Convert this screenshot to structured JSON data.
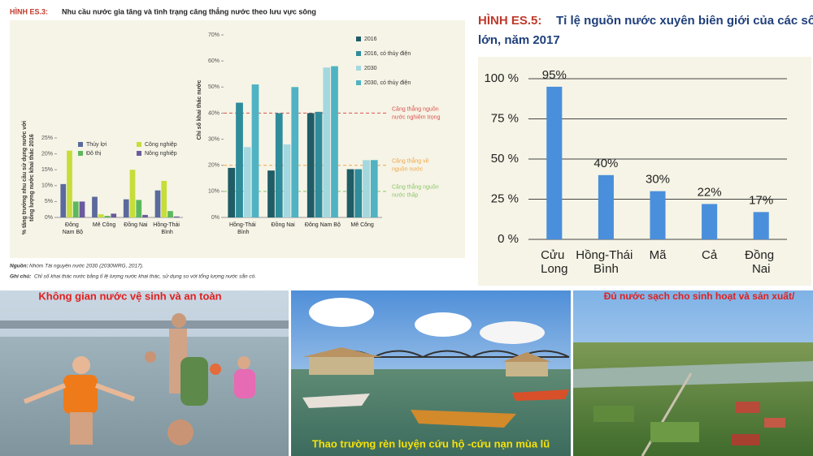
{
  "figure_es3": {
    "label": "HÌNH ES.3:",
    "title": "Nhu cầu nước gia tăng và tình trạng căng thẳng nước theo lưu vực sông",
    "source_label": "Nguồn:",
    "source": "Nhóm Tài nguyên nước 2030 (2030WRG, 2017).",
    "note_label": "Ghi chú:",
    "note": "Chỉ số khai thác nước bằng tỉ lệ lượng nước khai thác, sử dụng so với tổng lượng nước sẵn có."
  },
  "chart_data": [
    {
      "type": "bar",
      "y_label": [
        "% tăng trưởng nhu cầu sử dụng nước với",
        "tổng lượng nước khai thác 2016"
      ],
      "categories": [
        "Đông Nam Bộ",
        "Mê Công",
        "Đồng Nai",
        "Hồng-Thái Bình"
      ],
      "series": [
        {
          "name": "Thủy lợi",
          "color": "#5b6a9c",
          "values": [
            10.5,
            6.5,
            5.7,
            8.5
          ]
        },
        {
          "name": "Công nghiệp",
          "color": "#c6dd3a",
          "values": [
            21,
            1,
            15,
            11.5
          ]
        },
        {
          "name": "Đô thị",
          "color": "#5cb85c",
          "values": [
            5,
            0.5,
            5.5,
            2
          ]
        },
        {
          "name": "Nông nghiệp",
          "color": "#6b5a9e",
          "values": [
            5,
            1.2,
            0.8,
            0.3
          ]
        }
      ],
      "ylim": [
        0,
        25
      ],
      "yticks": [
        {
          "value": 0,
          "label": "0%"
        },
        {
          "value": 5,
          "label": "5%"
        },
        {
          "value": 10,
          "label": "10%"
        },
        {
          "value": 15,
          "label": "15%"
        },
        {
          "value": 20,
          "label": "20%"
        },
        {
          "value": 25,
          "label": "25%"
        }
      ]
    },
    {
      "type": "bar",
      "y_label": [
        "Chỉ số khai thác nước"
      ],
      "categories": [
        "Hồng-Thái Bình",
        "Đồng Nai",
        "Đông Nam Bộ",
        "Mê Công"
      ],
      "series": [
        {
          "name": "2016",
          "color": "#1f5c66",
          "values": [
            19,
            18,
            40,
            18.5
          ]
        },
        {
          "name": "2016, có thủy điện",
          "color": "#2e8c9b",
          "values": [
            44,
            40,
            40.5,
            18.5
          ]
        },
        {
          "name": "2030",
          "color": "#a4d8e0",
          "values": [
            27,
            28,
            57.5,
            22
          ]
        },
        {
          "name": "2030, có thủy điện",
          "color": "#4fb3c3",
          "values": [
            51,
            50,
            58,
            22
          ]
        }
      ],
      "ylim": [
        0,
        70
      ],
      "yticks": [
        {
          "value": 0,
          "label": "0%"
        },
        {
          "value": 10,
          "label": "10%"
        },
        {
          "value": 20,
          "label": "20%"
        },
        {
          "value": 30,
          "label": "30%"
        },
        {
          "value": 40,
          "label": "40%"
        },
        {
          "value": 50,
          "label": "50%"
        },
        {
          "value": 60,
          "label": "60%"
        },
        {
          "value": 70,
          "label": "70%"
        }
      ],
      "reference_lines": [
        {
          "value": 40,
          "color": "#d9534f",
          "label": [
            "Căng thẳng nguồn",
            "nước nghiêm trọng"
          ]
        },
        {
          "value": 20,
          "color": "#f0a64a",
          "label": [
            "Căng thẳng về",
            "nguồn nước"
          ]
        },
        {
          "value": 10,
          "color": "#8cc66a",
          "label": [
            "Căng thẳng nguồn",
            "nước thấp"
          ]
        }
      ]
    },
    {
      "type": "bar",
      "figure_label": "HÌNH ES.5:",
      "title": [
        "Tỉ lệ nguồn nước xuyên biên giới của các sông",
        "lớn, năm 2017"
      ],
      "categories": [
        "Cửu Long",
        "Hồng-Thái Bình",
        "Mã",
        "Cả",
        "Đồng Nai"
      ],
      "values": [
        95,
        40,
        30,
        22,
        17
      ],
      "value_labels": [
        "95%",
        "40%",
        "30%",
        "22%",
        "17%"
      ],
      "color": "#4a8fdb",
      "ylim": [
        0,
        100
      ],
      "yticks": [
        {
          "value": 0,
          "label": "0 %"
        },
        {
          "value": 25,
          "label": "25 %"
        },
        {
          "value": 50,
          "label": "50 %"
        },
        {
          "value": 75,
          "label": "75 %"
        },
        {
          "value": 100,
          "label": "100 %"
        }
      ],
      "grid": true
    }
  ],
  "photos": [
    {
      "caption": "Không gian nước vệ sinh và an toàn"
    },
    {
      "caption": "Thao trường rèn luyện cứu hộ -cứu nạn  mùa lũ"
    },
    {
      "caption": "Đủ nước sạch  cho  sinh hoạt và sản xuất/"
    }
  ]
}
